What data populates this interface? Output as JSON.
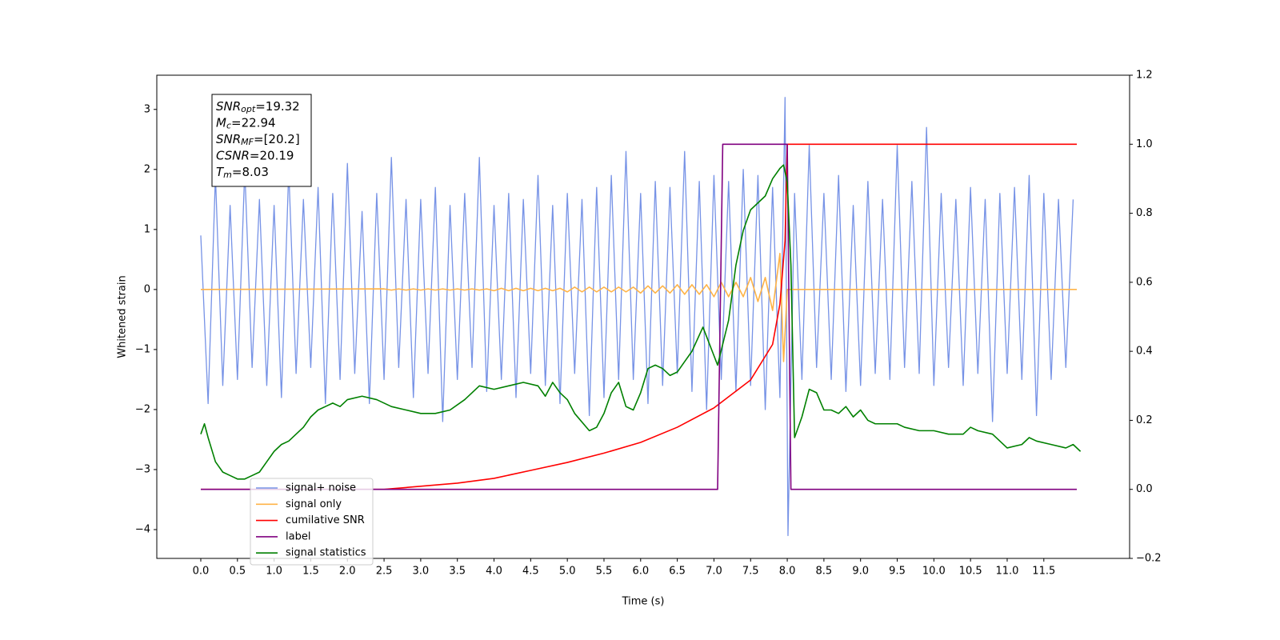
{
  "chart_data": {
    "type": "line",
    "xlabel": "Time (s)",
    "ylabel": "Whitened strain",
    "xlim": [
      -0.6,
      12.67
    ],
    "ylim": [
      -4.48,
      3.57
    ],
    "y2lim": [
      -0.2,
      1.2
    ],
    "xticks": [
      {
        "value": 0,
        "label": "0.0"
      },
      0.5,
      {
        "value": 1,
        "label": "1.0"
      },
      1.5,
      {
        "value": 2,
        "label": "2.0"
      },
      2.5,
      {
        "value": 3,
        "label": "3.0"
      },
      3.5,
      {
        "value": 4,
        "label": "4.0"
      },
      4.5,
      {
        "value": 5,
        "label": "5.0"
      },
      5.5,
      {
        "value": 6,
        "label": "6.0"
      },
      6.5,
      {
        "value": 7,
        "label": "7.0"
      },
      7.5,
      {
        "value": 8,
        "label": "8.0"
      },
      8.5,
      {
        "value": 9,
        "label": "9.0"
      },
      9.5,
      {
        "value": 10,
        "label": "10.0"
      },
      10.5,
      {
        "value": 11,
        "label": "11.0"
      },
      11.5
    ],
    "yticks": [
      {
        "value": -4,
        "label": "−4"
      },
      {
        "value": -3,
        "label": "−3"
      },
      {
        "value": -2,
        "label": "−2"
      },
      {
        "value": -1,
        "label": "−1"
      },
      0,
      1,
      2,
      3
    ],
    "y2ticks": [
      {
        "value": -0.2,
        "label": "−0.2"
      },
      {
        "value": 0,
        "label": "0.0"
      },
      0.2,
      0.4,
      0.6,
      0.8,
      {
        "value": 1,
        "label": "1.0"
      },
      1.2
    ],
    "legend": "lower left",
    "annotation": [
      {
        "name": "SNR",
        "sub": "opt",
        "text": "=19.32"
      },
      {
        "name": "M",
        "sub": "c",
        "text": "=22.94"
      },
      {
        "name": "SNR",
        "sub": "MF",
        "text": "=[20.2]"
      },
      {
        "name": "CSNR",
        "text": "=20.19"
      },
      {
        "name": "T",
        "sub": "m",
        "text": "=8.03"
      }
    ],
    "series": [
      {
        "name": "signal+ noise",
        "color": "#7692e6",
        "x": [
          0.0,
          0.1,
          0.2,
          0.3,
          0.4,
          0.5,
          0.6,
          0.7,
          0.8,
          0.9,
          1.0,
          1.1,
          1.2,
          1.3,
          1.4,
          1.5,
          1.6,
          1.7,
          1.8,
          1.9,
          2.0,
          2.1,
          2.2,
          2.3,
          2.4,
          2.5,
          2.6,
          2.7,
          2.8,
          2.9,
          3.0,
          3.1,
          3.2,
          3.3,
          3.4,
          3.5,
          3.6,
          3.7,
          3.8,
          3.9,
          4.0,
          4.1,
          4.2,
          4.3,
          4.4,
          4.5,
          4.6,
          4.7,
          4.8,
          4.9,
          5.0,
          5.1,
          5.2,
          5.3,
          5.4,
          5.5,
          5.6,
          5.7,
          5.8,
          5.9,
          6.0,
          6.1,
          6.2,
          6.3,
          6.4,
          6.5,
          6.6,
          6.7,
          6.8,
          6.9,
          7.0,
          7.1,
          7.2,
          7.3,
          7.4,
          7.5,
          7.6,
          7.7,
          7.8,
          7.9,
          7.97,
          8.01,
          8.1,
          8.2,
          8.3,
          8.4,
          8.5,
          8.6,
          8.7,
          8.8,
          8.9,
          9.0,
          9.1,
          9.2,
          9.3,
          9.4,
          9.5,
          9.6,
          9.7,
          9.8,
          9.9,
          10.0,
          10.1,
          10.2,
          10.3,
          10.4,
          10.5,
          10.6,
          10.7,
          10.8,
          10.9,
          11.0,
          11.1,
          11.2,
          11.3,
          11.4,
          11.5,
          11.6,
          11.7,
          11.8,
          11.9
        ],
        "values": [
          0.9,
          -1.9,
          1.9,
          -1.6,
          1.4,
          -1.5,
          2.0,
          -1.3,
          1.5,
          -1.6,
          1.4,
          -1.8,
          2.0,
          -1.4,
          1.5,
          -1.3,
          1.7,
          -1.9,
          1.6,
          -1.5,
          2.1,
          -1.4,
          1.3,
          -1.9,
          1.6,
          -1.5,
          2.2,
          -1.3,
          1.5,
          -1.8,
          1.5,
          -1.4,
          1.7,
          -2.2,
          1.4,
          -1.5,
          1.6,
          -1.3,
          2.2,
          -1.7,
          1.4,
          -1.5,
          1.6,
          -1.8,
          1.5,
          -1.4,
          1.9,
          -1.6,
          1.4,
          -1.9,
          1.6,
          -1.4,
          1.5,
          -2.1,
          1.7,
          -1.8,
          1.9,
          -1.5,
          2.3,
          -1.5,
          1.6,
          -1.9,
          1.8,
          -1.6,
          1.7,
          -1.4,
          2.3,
          -1.7,
          1.8,
          -2.0,
          1.9,
          -1.5,
          1.8,
          -1.7,
          2.0,
          -1.6,
          1.9,
          -2.0,
          1.7,
          -1.8,
          3.2,
          -4.1,
          1.6,
          -1.5,
          2.4,
          -1.3,
          1.6,
          -1.5,
          1.9,
          -1.7,
          1.4,
          -1.6,
          1.8,
          -1.4,
          1.5,
          -1.5,
          2.4,
          -1.3,
          1.8,
          -1.4,
          2.7,
          -1.6,
          1.6,
          -1.3,
          1.5,
          -1.6,
          1.7,
          -1.4,
          1.5,
          -2.2,
          1.6,
          -1.4,
          1.7,
          -1.5,
          1.9,
          -2.1,
          1.6,
          -1.5,
          1.5,
          -1.3,
          1.5
        ]
      },
      {
        "name": "signal only",
        "color": "#ffb347",
        "x": [
          0.0,
          2.5,
          2.6,
          2.7,
          2.8,
          2.9,
          3.0,
          3.1,
          3.2,
          3.3,
          3.4,
          3.5,
          3.6,
          3.7,
          3.8,
          3.9,
          4.0,
          4.1,
          4.2,
          4.3,
          4.4,
          4.5,
          4.6,
          4.7,
          4.8,
          4.9,
          5.0,
          5.1,
          5.2,
          5.3,
          5.4,
          5.5,
          5.6,
          5.7,
          5.8,
          5.9,
          6.0,
          6.1,
          6.2,
          6.3,
          6.4,
          6.5,
          6.6,
          6.7,
          6.8,
          6.9,
          7.0,
          7.1,
          7.2,
          7.3,
          7.4,
          7.5,
          7.6,
          7.7,
          7.8,
          7.9,
          7.95,
          8.0,
          11.95
        ],
        "values": [
          0,
          0.01,
          -0.01,
          0.01,
          -0.01,
          0.01,
          -0.01,
          0.01,
          -0.01,
          0.01,
          -0.01,
          0.01,
          -0.01,
          0.01,
          -0.01,
          0.01,
          -0.02,
          0.02,
          -0.02,
          0.02,
          -0.02,
          0.02,
          -0.02,
          0.02,
          -0.02,
          0.02,
          -0.04,
          0.04,
          -0.04,
          0.04,
          -0.04,
          0.04,
          -0.04,
          0.04,
          -0.04,
          0.04,
          -0.06,
          0.06,
          -0.06,
          0.06,
          -0.06,
          0.08,
          -0.08,
          0.08,
          -0.08,
          0.08,
          -0.12,
          0.12,
          -0.12,
          0.12,
          -0.12,
          0.2,
          -0.2,
          0.2,
          -0.35,
          0.6,
          -1.2,
          0,
          0
        ]
      },
      {
        "name": "cumilative SNR",
        "color": "#ff0000",
        "axis": "y2",
        "x": [
          0,
          2.5,
          3.0,
          3.5,
          4.0,
          4.5,
          5.0,
          5.5,
          6.0,
          6.5,
          7.0,
          7.5,
          7.8,
          7.9,
          7.97,
          8.0,
          11.95
        ],
        "values": [
          0,
          0,
          0.009,
          0.018,
          0.032,
          0.055,
          0.078,
          0.105,
          0.136,
          0.18,
          0.236,
          0.317,
          0.42,
          0.537,
          0.72,
          1.0,
          1.0
        ]
      },
      {
        "name": "label",
        "color": "#800080",
        "axis": "y2",
        "x": [
          0,
          7.05,
          7.12,
          8.0,
          8.05,
          11.95
        ],
        "values": [
          0,
          0,
          1,
          1,
          0,
          0
        ]
      },
      {
        "name": "signal statistics",
        "color": "#008000",
        "axis": "y2",
        "x": [
          0.0,
          0.05,
          0.1,
          0.2,
          0.3,
          0.4,
          0.5,
          0.6,
          0.7,
          0.8,
          0.9,
          1.0,
          1.1,
          1.2,
          1.3,
          1.4,
          1.5,
          1.6,
          1.7,
          1.8,
          1.9,
          2.0,
          2.2,
          2.4,
          2.6,
          2.8,
          3.0,
          3.2,
          3.4,
          3.6,
          3.8,
          4.0,
          4.2,
          4.4,
          4.6,
          4.7,
          4.8,
          4.9,
          5.0,
          5.1,
          5.3,
          5.4,
          5.5,
          5.6,
          5.7,
          5.8,
          5.9,
          6.0,
          6.1,
          6.2,
          6.3,
          6.4,
          6.5,
          6.6,
          6.7,
          6.85,
          7.05,
          7.2,
          7.3,
          7.4,
          7.5,
          7.6,
          7.7,
          7.8,
          7.9,
          7.95,
          8.0,
          8.05,
          8.1,
          8.2,
          8.3,
          8.4,
          8.5,
          8.6,
          8.7,
          8.8,
          8.9,
          9.0,
          9.1,
          9.2,
          9.4,
          9.5,
          9.6,
          9.8,
          10.0,
          10.2,
          10.4,
          10.5,
          10.6,
          10.8,
          11.0,
          11.2,
          11.3,
          11.4,
          11.6,
          11.8,
          11.9,
          12.0
        ],
        "values": [
          0.16,
          0.19,
          0.15,
          0.08,
          0.05,
          0.04,
          0.03,
          0.03,
          0.04,
          0.05,
          0.08,
          0.11,
          0.13,
          0.14,
          0.16,
          0.18,
          0.21,
          0.23,
          0.24,
          0.25,
          0.24,
          0.26,
          0.27,
          0.26,
          0.24,
          0.23,
          0.22,
          0.22,
          0.23,
          0.26,
          0.3,
          0.29,
          0.3,
          0.31,
          0.3,
          0.27,
          0.31,
          0.28,
          0.26,
          0.22,
          0.17,
          0.18,
          0.22,
          0.28,
          0.31,
          0.24,
          0.23,
          0.28,
          0.35,
          0.36,
          0.35,
          0.33,
          0.34,
          0.37,
          0.4,
          0.47,
          0.36,
          0.49,
          0.65,
          0.75,
          0.81,
          0.83,
          0.85,
          0.9,
          0.93,
          0.94,
          0.89,
          0.65,
          0.15,
          0.21,
          0.29,
          0.28,
          0.23,
          0.23,
          0.22,
          0.24,
          0.21,
          0.23,
          0.2,
          0.19,
          0.19,
          0.19,
          0.18,
          0.17,
          0.17,
          0.16,
          0.16,
          0.18,
          0.17,
          0.16,
          0.12,
          0.13,
          0.15,
          0.14,
          0.13,
          0.12,
          0.13,
          0.11
        ]
      }
    ]
  }
}
